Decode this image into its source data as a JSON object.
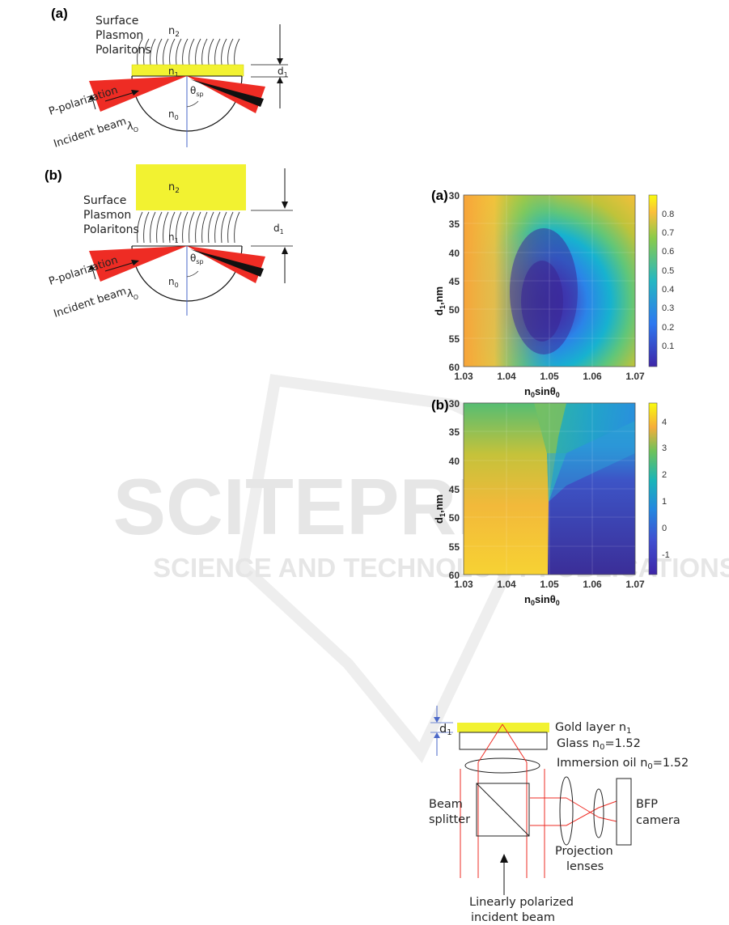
{
  "watermark": {
    "main": "SCITEPRESS",
    "sub": "SCIENCE AND TECHNOLOGY PUBLICATIONS"
  },
  "diagram_a": {
    "panel_label": "(a)",
    "spp_lines": [
      "Surface",
      "Plasmon",
      "Polaritons"
    ],
    "n2": "n",
    "n2_sub": "2",
    "n1": "n",
    "n1_sub": "1",
    "n0": "n",
    "n0_sub": "0",
    "d1": "d",
    "d1_sub": "1",
    "theta": "θ",
    "theta_sub": "sp",
    "p_pol": "P-polarization",
    "incident": "Incident beam",
    "lambda": "λ",
    "lambda_sub": "O"
  },
  "diagram_b": {
    "panel_label": "(b)",
    "spp_lines": [
      "Surface",
      "Plasmon",
      "Polaritons"
    ],
    "n2": "n",
    "n2_sub": "2",
    "n1": "n",
    "n1_sub": "1",
    "n0": "n",
    "n0_sub": "0",
    "d1": "d",
    "d1_sub": "1",
    "theta": "θ",
    "theta_sub": "sp",
    "p_pol": "P-polarization",
    "incident": "Incident beam",
    "lambda": "λ",
    "lambda_sub": "O"
  },
  "heatmap_a": {
    "panel_label": "(a)",
    "xlabel": "n",
    "xlabel_sub": "0",
    "xlabel_rest": "sin",
    "xlabel_theta": "θ",
    "xlabel_theta_sub": "0",
    "ylabel": "d",
    "ylabel_sub": "1",
    "ylabel_rest": ",nm",
    "x_ticks": [
      "1.03",
      "1.04",
      "1.05",
      "1.06",
      "1.07"
    ],
    "y_ticks": [
      "30",
      "35",
      "40",
      "45",
      "50",
      "55",
      "60"
    ],
    "cb_ticks": [
      "0.8",
      "0.7",
      "0.6",
      "0.5",
      "0.4",
      "0.3",
      "0.2",
      "0.1"
    ]
  },
  "heatmap_b": {
    "panel_label": "(b)",
    "xlabel": "n",
    "xlabel_sub": "0",
    "xlabel_rest": "sin",
    "xlabel_theta": "θ",
    "xlabel_theta_sub": "0",
    "ylabel": "d",
    "ylabel_sub": "1",
    "ylabel_rest": ",nm",
    "x_ticks": [
      "1.03",
      "1.04",
      "1.05",
      "1.06",
      "1.07"
    ],
    "y_ticks": [
      "30",
      "35",
      "40",
      "45",
      "50",
      "55",
      "60"
    ],
    "cb_ticks": [
      "4",
      "3",
      "2",
      "1",
      "0",
      "-1"
    ]
  },
  "setup": {
    "d1": "d",
    "d1_sub": "1",
    "gold": "Gold layer n",
    "gold_sub": "1",
    "glass": "Glass n",
    "glass_sub": "0",
    "glass_val": "=1.52",
    "oil": "Immersion oil n",
    "oil_sub": "0",
    "oil_val": "=1.52",
    "beam_splitter": [
      "Beam",
      "splitter"
    ],
    "projection": [
      "Projection",
      "lenses"
    ],
    "bfp": [
      "BFP",
      "camera"
    ],
    "incident": [
      "Linearly polarized",
      "incident beam"
    ]
  },
  "colors": {
    "gold": "#f2f231",
    "beam": "#ee2c24",
    "axis_line": "#4a67c8"
  }
}
